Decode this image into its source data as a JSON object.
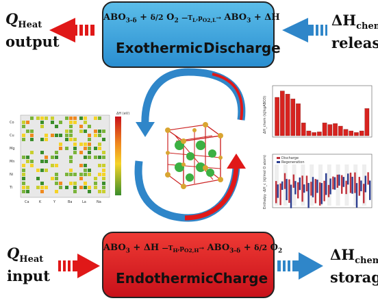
{
  "top_box": {
    "equation": "ABO3-δ + δ/2 O2 —(T_L, p_O2,L)→ ABO3 + ΔH",
    "left_label": "Exothermic",
    "right_label": "Discharge"
  },
  "bottom_box": {
    "equation": "ABO3 + ΔH —(T_H, p_O2,H)→ ABO3-δ + δ/2 O2",
    "left_label": "Endothermic",
    "right_label": "Charge"
  },
  "left_top": {
    "q": "Q",
    "sub": "Heat",
    "line2": "output"
  },
  "left_bottom": {
    "q": "Q",
    "sub": "Heat",
    "line2": "input"
  },
  "right_top": {
    "dh": "ΔH",
    "sub": "chem",
    "line2": "release"
  },
  "right_bottom": {
    "dh": "ΔH",
    "sub": "chem",
    "storage": "storage"
  },
  "heatmap": {
    "row_labels": [
      "Co",
      "Cu",
      "Mg",
      "Mn",
      "Ni",
      "Ti"
    ],
    "col_labels": [
      "Ca",
      "K",
      "Y",
      "Ba",
      "La",
      "Na"
    ],
    "colorbar_title": "ΔH (eV)"
  },
  "bar_chart": {
    "ylabel": "ΔH_chem (kJ/kgABO3)",
    "values": [
      120,
      140,
      130,
      115,
      100,
      40,
      15,
      10,
      12,
      40,
      35,
      38,
      30,
      20,
      15,
      10,
      15,
      85
    ]
  },
  "pair_chart": {
    "ylabel": "Enthalpy -ΔH_c (kJ/mol O atom)",
    "legend": [
      "Discharge",
      "Regeneration"
    ]
  },
  "colors": {
    "exo_blue": "#2a8ed0",
    "endo_red": "#c8111a",
    "arrow_red": "#e01818",
    "arrow_blue": "#2f86c9",
    "bar_red": "#d7231f"
  }
}
